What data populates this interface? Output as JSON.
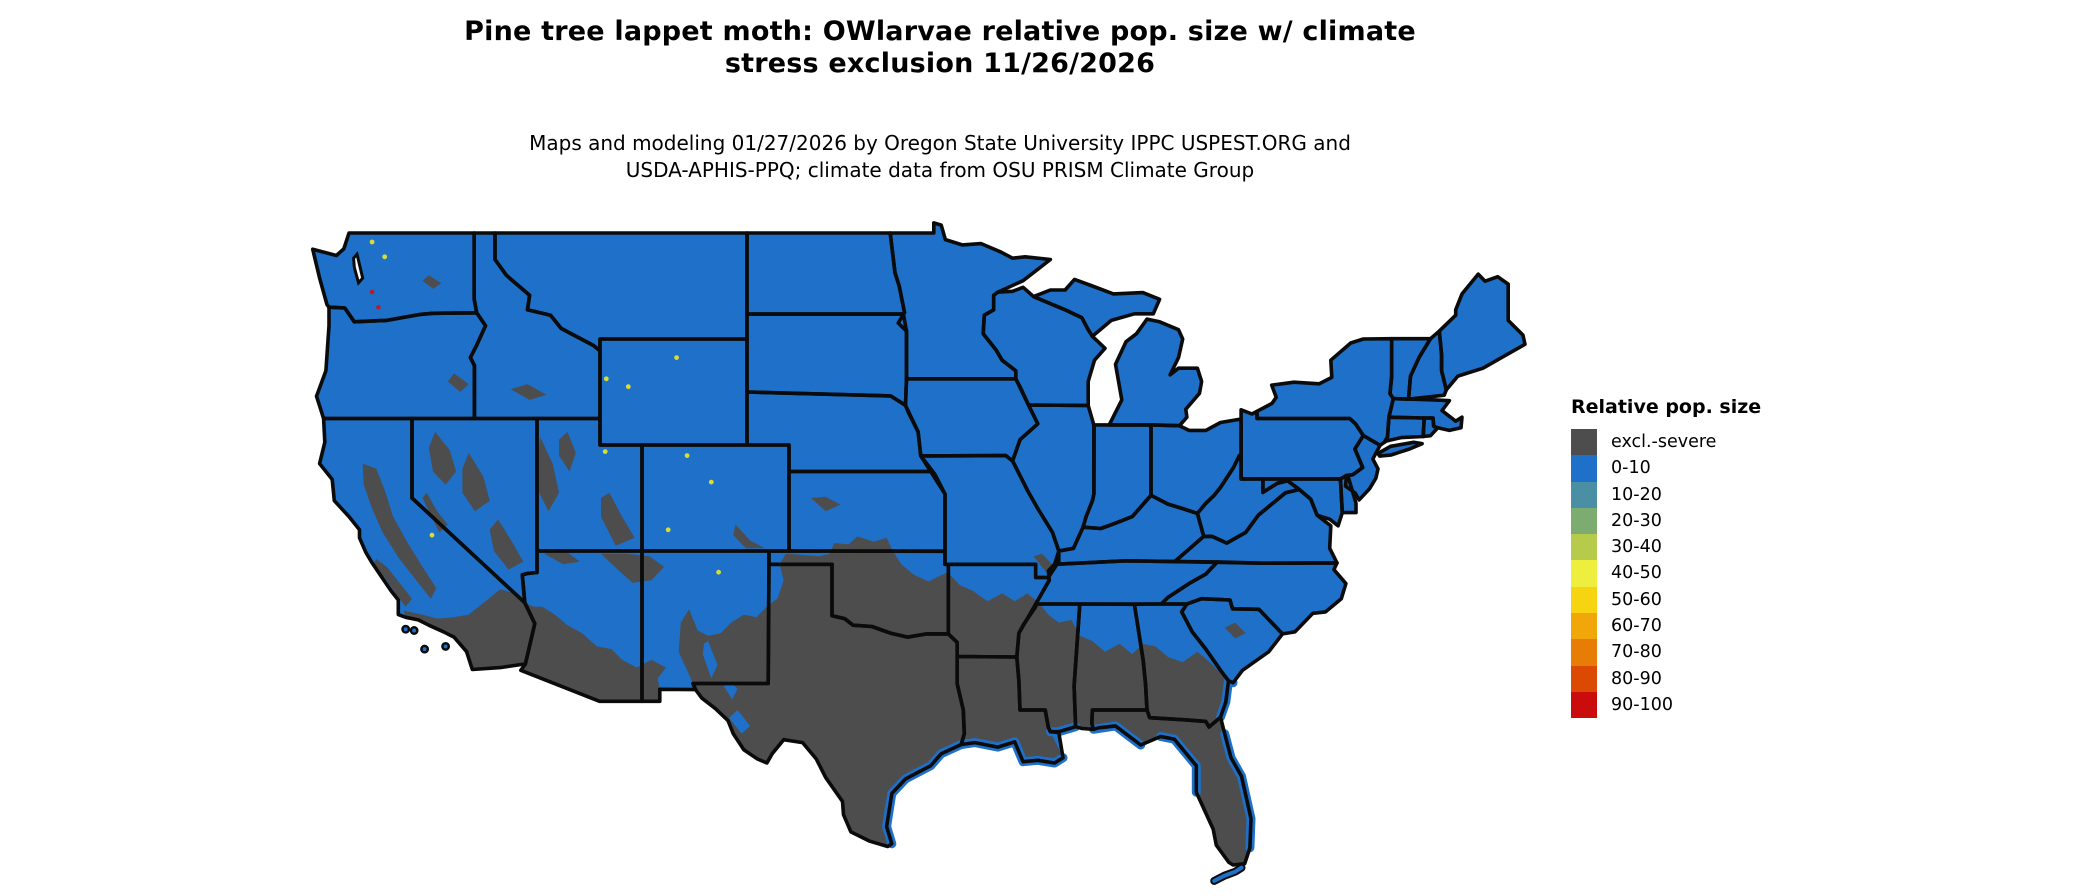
{
  "title": {
    "line1": "Pine tree lappet moth: OWlarvae relative pop. size w/ climate",
    "line2": "stress exclusion 11/26/2026"
  },
  "subtitle": {
    "line1": "Maps and modeling 01/27/2026 by Oregon State University IPPC USPEST.ORG and",
    "line2": "USDA-APHIS-PPQ; climate data from OSU PRISM Climate Group"
  },
  "legend": {
    "title": "Relative pop. size",
    "items": [
      {
        "label": "excl.-severe",
        "color": "#4D4D4D"
      },
      {
        "label": "0-10",
        "color": "#1E70C8"
      },
      {
        "label": "10-20",
        "color": "#4A8FA4"
      },
      {
        "label": "20-30",
        "color": "#7DAC70"
      },
      {
        "label": "30-40",
        "color": "#B6CB4B"
      },
      {
        "label": "40-50",
        "color": "#EDEE3D"
      },
      {
        "label": "50-60",
        "color": "#F6D411"
      },
      {
        "label": "60-70",
        "color": "#F1A70A"
      },
      {
        "label": "70-80",
        "color": "#E87D05"
      },
      {
        "label": "80-90",
        "color": "#DB4903"
      },
      {
        "label": "90-100",
        "color": "#CB0C0C"
      }
    ]
  },
  "map": {
    "colors": {
      "background": "#FFFFFF",
      "base_0_10": "#1E70C8",
      "excluded": "#4D4D4D",
      "border": "#0B0B0B",
      "water": "#FFFFFF",
      "speck_yellow": "#D9DC33",
      "speck_red": "#CC1414"
    }
  }
}
